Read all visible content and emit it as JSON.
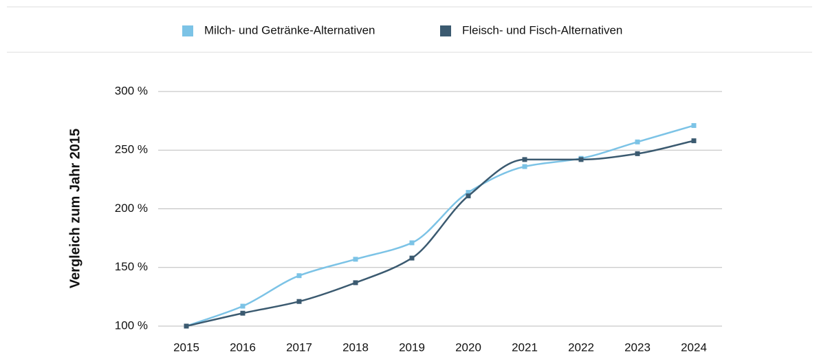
{
  "chart_data": {
    "type": "line",
    "y_label": "Vergleich zum Jahr 2015",
    "categories": [
      "2015",
      "2016",
      "2017",
      "2018",
      "2019",
      "2020",
      "2021",
      "2022",
      "2023",
      "2024"
    ],
    "series": [
      {
        "name": "Milch- und Getränke-Alternativen",
        "color": "#7cc3e6",
        "values": [
          100,
          117,
          143,
          157,
          171,
          214,
          236,
          243,
          257,
          271
        ]
      },
      {
        "name": "Fleisch- und Fisch-Alternativen",
        "color": "#3b5a70",
        "values": [
          100,
          111,
          121,
          137,
          158,
          211,
          242,
          242,
          247,
          258
        ]
      }
    ],
    "ylim": [
      100,
      300
    ],
    "yticks": [
      {
        "value": 100,
        "label": "100 %"
      },
      {
        "value": 150,
        "label": "150 %"
      },
      {
        "value": 200,
        "label": "200 %"
      },
      {
        "value": 250,
        "label": "250 %"
      },
      {
        "value": 300,
        "label": "300 %"
      }
    ],
    "grid": true,
    "legend": "top"
  }
}
